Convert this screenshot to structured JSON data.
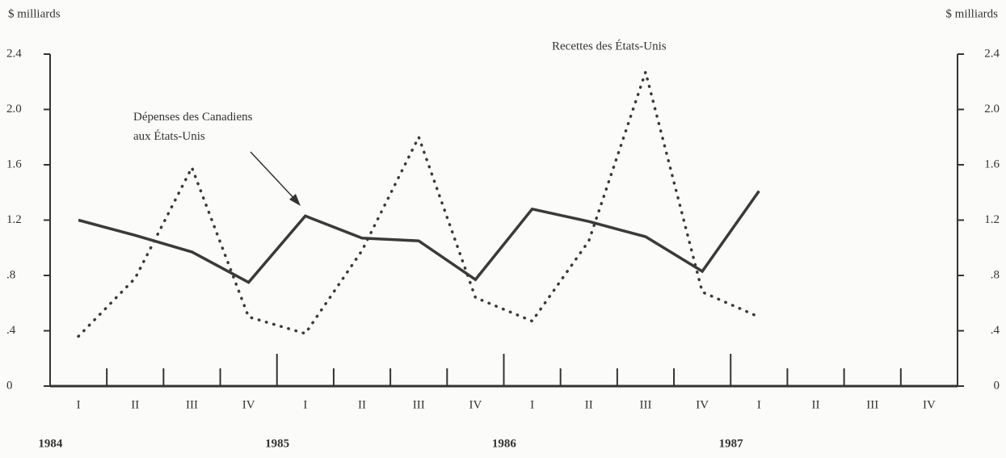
{
  "chart_data": {
    "type": "line",
    "y_label": "$ milliards",
    "y2_label": "$ milliards",
    "categories": [
      "I",
      "II",
      "III",
      "IV",
      "I",
      "II",
      "III",
      "IV",
      "I",
      "II",
      "III",
      "IV",
      "I",
      "II",
      "III",
      "IV"
    ],
    "years": [
      "1984",
      "1985",
      "1986",
      "1987"
    ],
    "series": [
      {
        "name": "Dépenses des Canadiens aux États-Unis",
        "color": "#3a3a3a",
        "style": "solid",
        "values": [
          1.2,
          1.09,
          0.97,
          0.75,
          1.23,
          1.07,
          1.05,
          0.77,
          1.28,
          1.19,
          1.08,
          0.83,
          1.41,
          null,
          null,
          null
        ]
      },
      {
        "name": "Recettes des États-Unis",
        "color": "#3a3a3a",
        "style": "dotted",
        "values": [
          0.36,
          0.78,
          1.58,
          0.5,
          0.38,
          0.98,
          1.8,
          0.64,
          0.47,
          1.05,
          2.27,
          0.68,
          0.5,
          null,
          null,
          null
        ]
      }
    ],
    "ylim": [
      0,
      2.4
    ],
    "yticks": [
      0,
      {
        "value": 0.4,
        "label": ".4"
      },
      {
        "value": 0.8,
        "label": ".8"
      },
      1.2,
      1.6,
      {
        "value": 2.0,
        "label": "2.0"
      },
      2.4
    ],
    "y2lim": [
      0,
      2.4
    ],
    "y2ticks": [
      0,
      {
        "value": 0.4,
        "label": ".4"
      },
      {
        "value": 0.8,
        "label": ".8"
      },
      1.2,
      1.6,
      {
        "value": 2.0,
        "label": "2.0"
      },
      2.4
    ]
  }
}
